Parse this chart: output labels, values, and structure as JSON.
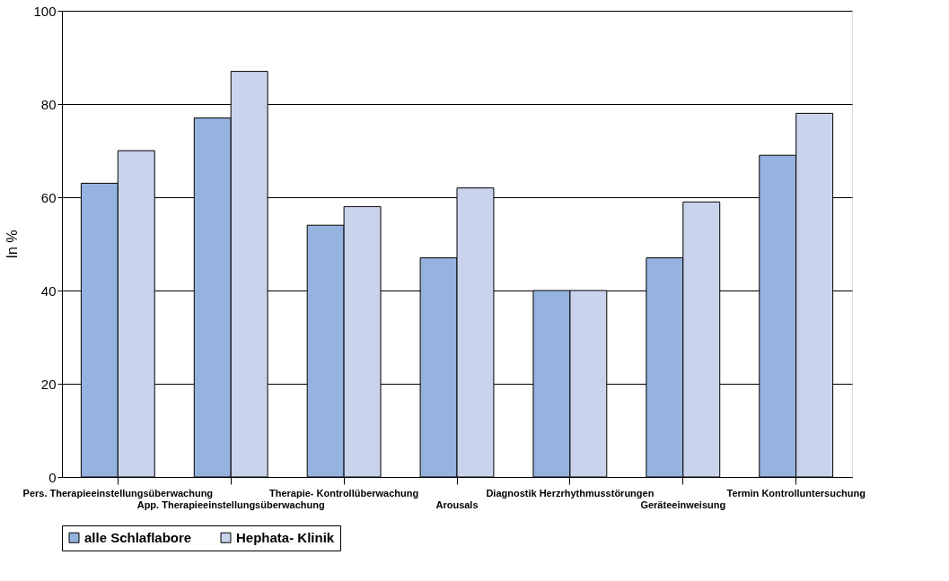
{
  "chart_data": {
    "type": "bar",
    "ylabel": "In %",
    "categories": [
      "Pers. Therapieeinstellungsüberwachung",
      "App. Therapieeinstellungsüberwachung",
      "Therapie- Kontrollüberwachung",
      "Arousals",
      "Diagnostik Herzrhythmusstörungen",
      "Geräteeinweisung",
      "Termin Kontrolluntersuchung"
    ],
    "series": [
      {
        "name": "alle Schlaflabore",
        "color": "#95b3de",
        "values": [
          63,
          77,
          54,
          47,
          40,
          47,
          69
        ]
      },
      {
        "name": "Hephata- Klinik",
        "color": "#c9d3ec",
        "values": [
          70,
          87,
          58,
          62,
          40,
          59,
          78
        ]
      }
    ],
    "ylim": [
      0,
      100
    ],
    "yticks": [
      0,
      20,
      40,
      60,
      80,
      100
    ],
    "grid": "y",
    "legend": "bottom"
  }
}
